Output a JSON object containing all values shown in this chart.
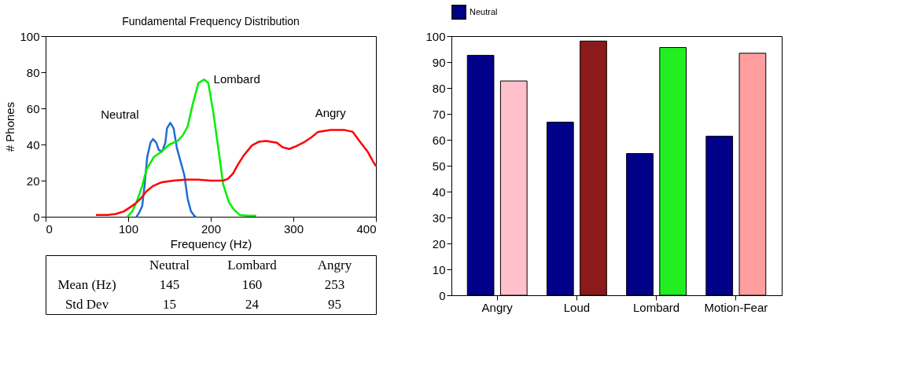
{
  "chart_data": [
    {
      "type": "line",
      "title": "Fundamental Frequency Distribution",
      "annotations": [
        "Neutral",
        "Lombard",
        "Angry",
        "Mean (Hz)",
        "145",
        "160",
        "253",
        "Std Dev",
        "15",
        "24",
        "95"
      ],
      "xlabel": "Frequency (Hz)",
      "ylabel": "# Phones",
      "xlim": [
        0,
        400
      ],
      "xticks": [
        0,
        100,
        200,
        300,
        400
      ],
      "ylim": [
        0,
        100
      ],
      "yticks": [
        0,
        20,
        40,
        60,
        80,
        100
      ],
      "grid": false,
      "legend": false,
      "line_style": "solid",
      "series": [
        {
          "name": "Neutral",
          "color": "#1f6fd0",
          "x": [
            110,
            113,
            117,
            120,
            123,
            127,
            130,
            134,
            137,
            141,
            145,
            147,
            151,
            155,
            159,
            165,
            168,
            172,
            176,
            180,
            182
          ],
          "values": [
            0,
            2,
            6,
            18,
            33,
            41,
            43,
            41,
            37,
            36,
            41,
            49,
            52,
            49,
            38,
            28,
            23,
            10,
            3,
            0.5,
            0
          ]
        },
        {
          "name": "Lombard",
          "color": "#00ee00",
          "x": [
            99,
            105,
            110,
            117,
            122,
            131,
            140,
            150,
            160,
            166,
            172,
            178,
            185,
            192,
            197,
            203,
            210,
            215,
            222,
            228,
            235,
            245,
            255
          ],
          "values": [
            0,
            3,
            8,
            17,
            26,
            33,
            36,
            40,
            42,
            45,
            50,
            62,
            74,
            76,
            74,
            58,
            35,
            18,
            8,
            4,
            1,
            0.5,
            0.5
          ]
        },
        {
          "name": "Angry",
          "color": "#ff0000",
          "x": [
            61,
            75,
            85,
            95,
            108,
            115,
            122,
            130,
            140,
            155,
            170,
            185,
            200,
            215,
            221,
            227,
            233,
            240,
            250,
            258,
            267,
            280,
            287,
            295,
            303,
            312,
            322,
            330,
            345,
            362,
            372,
            380,
            390,
            396,
            400
          ],
          "values": [
            1,
            1,
            1.5,
            3,
            7,
            10,
            14,
            17,
            19,
            20,
            20.5,
            20.5,
            20,
            20,
            21,
            24,
            29,
            34,
            39.5,
            41.5,
            42,
            41,
            38.5,
            37.5,
            39,
            41,
            44,
            47,
            48,
            48,
            47,
            42,
            36,
            31,
            28
          ]
        }
      ]
    },
    {
      "type": "bar",
      "categories": [
        "Angry",
        "Loud",
        "Lombard",
        "Motion-Fear"
      ],
      "ylim": [
        0,
        100
      ],
      "yticks": [
        0,
        10,
        20,
        30,
        40,
        50,
        60,
        70,
        80,
        90,
        100
      ],
      "grid": false,
      "legend": "top",
      "series": [
        {
          "name": "Neutral",
          "color": "#000088",
          "values": [
            92.6,
            66.8,
            54.7,
            61.4
          ]
        },
        {
          "colors": [
            "#ffc0cb",
            "#8b1a1a",
            "#22ee22",
            "#ff9e9e"
          ],
          "values": [
            82.7,
            98.1,
            95.6,
            93.4
          ]
        }
      ]
    }
  ]
}
